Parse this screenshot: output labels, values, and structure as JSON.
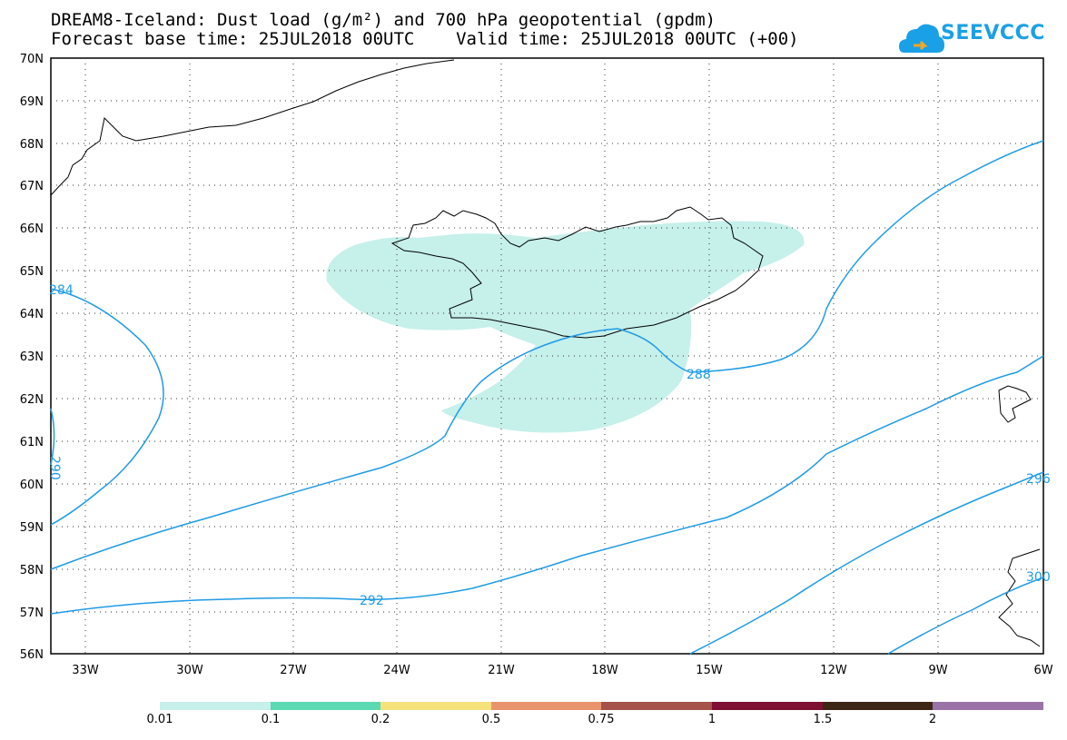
{
  "title_line1": "DREAM8-Iceland: Dust load (g/m²) and 700 hPa geopotential (gpdm)",
  "title_line2": "Forecast base time: 25JUL2018 00UTC    Valid time: 25JUL2018 00UTC (+00)",
  "logo_text": "SEEVCCC",
  "map": {
    "lat_labels": [
      "70N",
      "69N",
      "68N",
      "67N",
      "66N",
      "65N",
      "64N",
      "63N",
      "62N",
      "61N",
      "60N",
      "59N",
      "58N",
      "57N",
      "56N"
    ],
    "lon_labels": [
      "33W",
      "30W",
      "27W",
      "24W",
      "21W",
      "18W",
      "15W",
      "12W",
      "9W",
      "6W"
    ],
    "contour_labels": [
      "284",
      "290",
      "288",
      "292",
      "296",
      "300"
    ],
    "contour_color": "#1e9be6",
    "dust_color": "#c6f0ea"
  },
  "legend": {
    "labels": [
      "0.01",
      "0.1",
      "0.2",
      "0.5",
      "0.75",
      "1",
      "1.5",
      "2"
    ],
    "colors": [
      "#c6f0ea",
      "#5ad9b3",
      "#f5e27a",
      "#ea946e",
      "#a5524a",
      "#7f0f33",
      "#3d2616",
      "#9a72a7"
    ]
  }
}
